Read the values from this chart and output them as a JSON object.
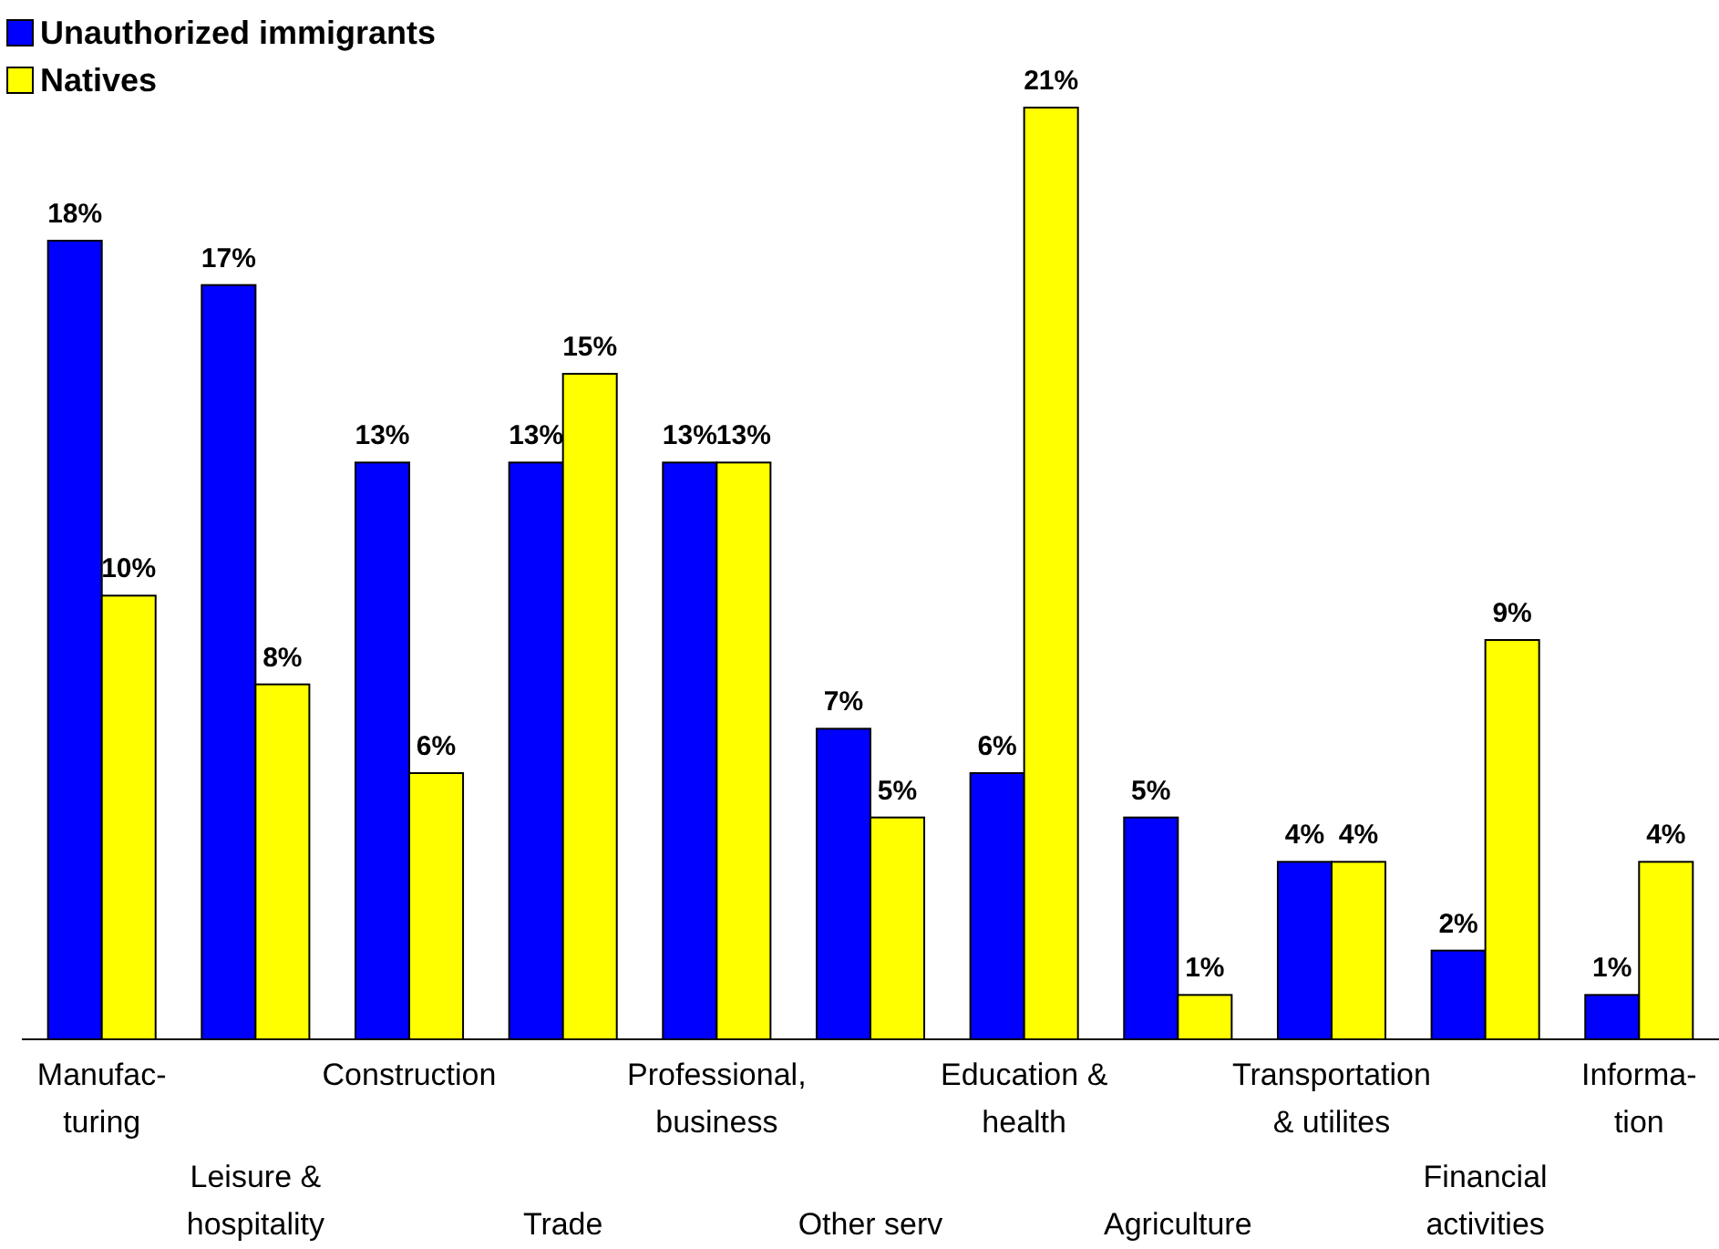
{
  "chart_data": {
    "type": "bar",
    "categories": [
      "Manufac-\nturing",
      "Leisure &\nhospitality",
      "Construction",
      "Trade",
      "Professional,\nbusiness",
      "Other serv",
      "Education &\nhealth",
      "Agriculture",
      "Transportation\n& utilites",
      "Financial\nactivities",
      "Informa-\ntion"
    ],
    "series": [
      {
        "name": "Unauthorized immigrants",
        "color": "#0000ff",
        "values": [
          18,
          17,
          13,
          13,
          13,
          7,
          6,
          5,
          4,
          2,
          1
        ],
        "value_labels": [
          "18%",
          "17%",
          "13%",
          "13%",
          "13%",
          "7%",
          "6%",
          "5%",
          "4%",
          "2%",
          "1%"
        ]
      },
      {
        "name": "Natives",
        "color": "#ffff00",
        "values": [
          10,
          8,
          6,
          15,
          13,
          5,
          21,
          1,
          4,
          9,
          4
        ],
        "value_labels": [
          "10%",
          "8%",
          "6%",
          "15%",
          "13%",
          "5%",
          "21%",
          "1%",
          "4%",
          "9%",
          "4%"
        ]
      }
    ],
    "legend": "top left"
  }
}
